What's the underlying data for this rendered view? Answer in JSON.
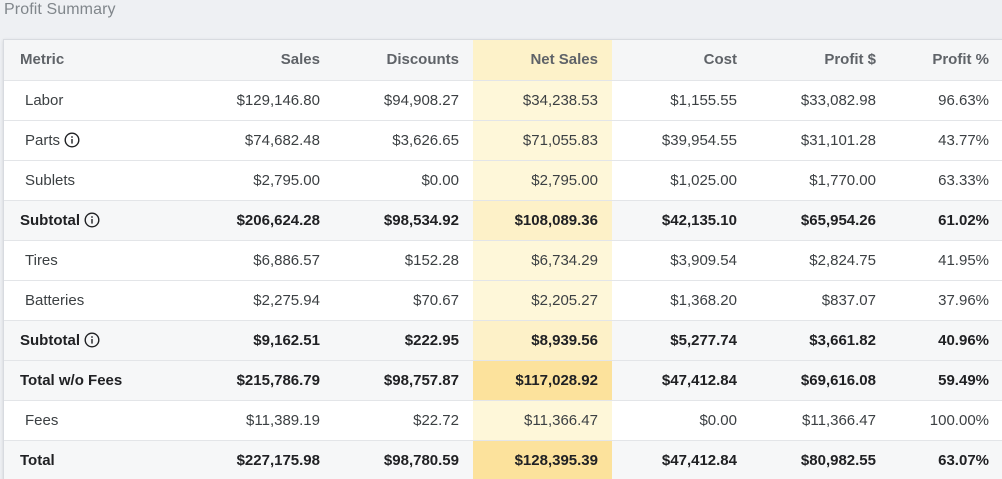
{
  "title": "Profit Summary",
  "columns": [
    "Metric",
    "Sales",
    "Discounts",
    "Net Sales",
    "Cost",
    "Profit $",
    "Profit %"
  ],
  "rows": [
    {
      "type": "item",
      "cells": [
        "Labor",
        "$129,146.80",
        "$94,908.27",
        "$34,238.53",
        "$1,155.55",
        "$33,082.98",
        "96.63%"
      ],
      "icon": ""
    },
    {
      "type": "item",
      "cells": [
        "Parts",
        "$74,682.48",
        "$3,626.65",
        "$71,055.83",
        "$39,954.55",
        "$31,101.28",
        "43.77%"
      ],
      "icon": "info-icon"
    },
    {
      "type": "item",
      "cells": [
        "Sublets",
        "$2,795.00",
        "$0.00",
        "$2,795.00",
        "$1,025.00",
        "$1,770.00",
        "63.33%"
      ],
      "icon": ""
    },
    {
      "type": "sub",
      "cells": [
        "Subtotal",
        "$206,624.28",
        "$98,534.92",
        "$108,089.36",
        "$42,135.10",
        "$65,954.26",
        "61.02%"
      ],
      "icon": "info-icon"
    },
    {
      "type": "item",
      "cells": [
        "Tires",
        "$6,886.57",
        "$152.28",
        "$6,734.29",
        "$3,909.54",
        "$2,824.75",
        "41.95%"
      ],
      "icon": ""
    },
    {
      "type": "item",
      "cells": [
        "Batteries",
        "$2,275.94",
        "$70.67",
        "$2,205.27",
        "$1,368.20",
        "$837.07",
        "37.96%"
      ],
      "icon": ""
    },
    {
      "type": "sub",
      "cells": [
        "Subtotal",
        "$9,162.51",
        "$222.95",
        "$8,939.56",
        "$5,277.74",
        "$3,661.82",
        "40.96%"
      ],
      "icon": "info-icon"
    },
    {
      "type": "total",
      "cells": [
        "Total w/o Fees",
        "$215,786.79",
        "$98,757.87",
        "$117,028.92",
        "$47,412.84",
        "$69,616.08",
        "59.49%"
      ],
      "icon": ""
    },
    {
      "type": "item",
      "cells": [
        "Fees",
        "$11,389.19",
        "$22.72",
        "$11,366.47",
        "$0.00",
        "$11,366.47",
        "100.00%"
      ],
      "icon": ""
    },
    {
      "type": "total",
      "cells": [
        "Total",
        "$227,175.98",
        "$98,780.59",
        "$128,395.39",
        "$47,412.84",
        "$80,982.55",
        "63.07%"
      ],
      "icon": ""
    }
  ],
  "colors": {
    "net_sales_header": "#fdf2c9",
    "net_sales_cell": "#fef7d9",
    "net_sales_total": "#fce29c"
  }
}
